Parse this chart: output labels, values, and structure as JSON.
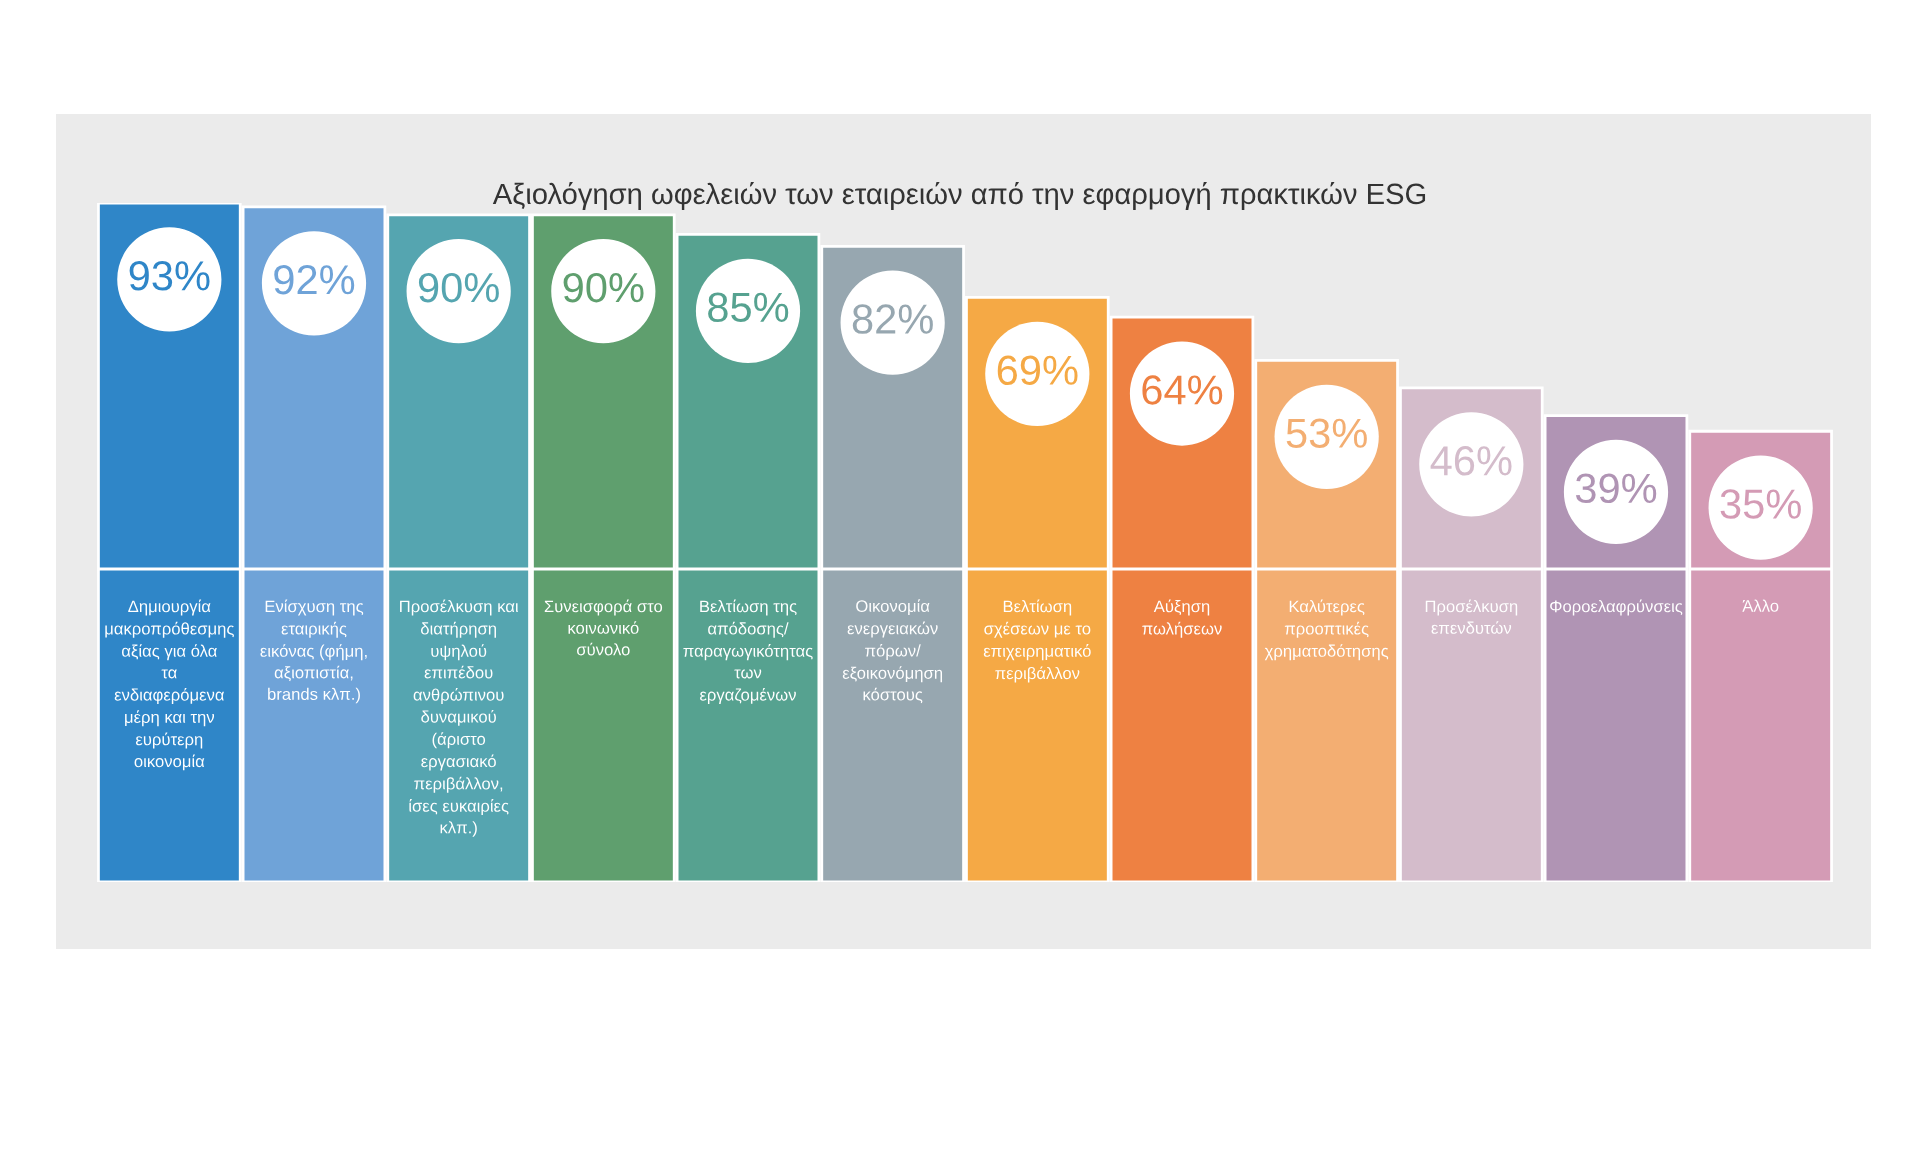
{
  "chart_data": {
    "type": "bar",
    "title": "Αξιολόγηση ωφελειών των εταιρειών από την εφαρμογή πρακτικών ESG",
    "categories": [
      "Δημιουργία μακροπρόθεσμης αξίας για όλα τα ενδιαφερόμενα μέρη και την ευρύτερη οικονομία",
      "Ενίσχυση της εταιρικής εικόνας (φήμη, αξιοπιστία, brands κλπ.)",
      "Προσέλκυση και διατήρηση υψηλού επιπέδου ανθρώπινου δυναμικού (άριστο εργασιακό περιβάλλον, ίσες ευκαιρίες κλπ.)",
      "Συνεισφορά στο κοινωνικό σύνολο",
      "Βελτίωση της απόδοσης/ παραγωγικότητας των εργαζομένων",
      "Οικονομία ενεργειακών πόρων/ εξοικονόμηση κόστους",
      "Βελτίωση σχέσεων με το επιχειρηματικό περιβάλλον",
      "Αύξηση πωλήσεων",
      "Καλύτερες προοπτικές χρηματοδότησης",
      "Προσέλκυση επενδυτών",
      "Φοροελαφρύνσεις",
      "Άλλο"
    ],
    "values": [
      93,
      92,
      90,
      90,
      85,
      82,
      69,
      64,
      53,
      46,
      39,
      35
    ],
    "value_labels": [
      "93%",
      "92%",
      "90%",
      "90%",
      "85%",
      "82%",
      "69%",
      "64%",
      "53%",
      "46%",
      "39%",
      "35%"
    ],
    "colors": [
      "#2f86c8",
      "#6fa3d8",
      "#55a5b0",
      "#5f9f6e",
      "#56a290",
      "#97a7b0",
      "#f5a945",
      "#ee8142",
      "#f3ae72",
      "#d4bccb",
      "#b094b4",
      "#d49bb5"
    ],
    "grid": false,
    "legend": false
  }
}
